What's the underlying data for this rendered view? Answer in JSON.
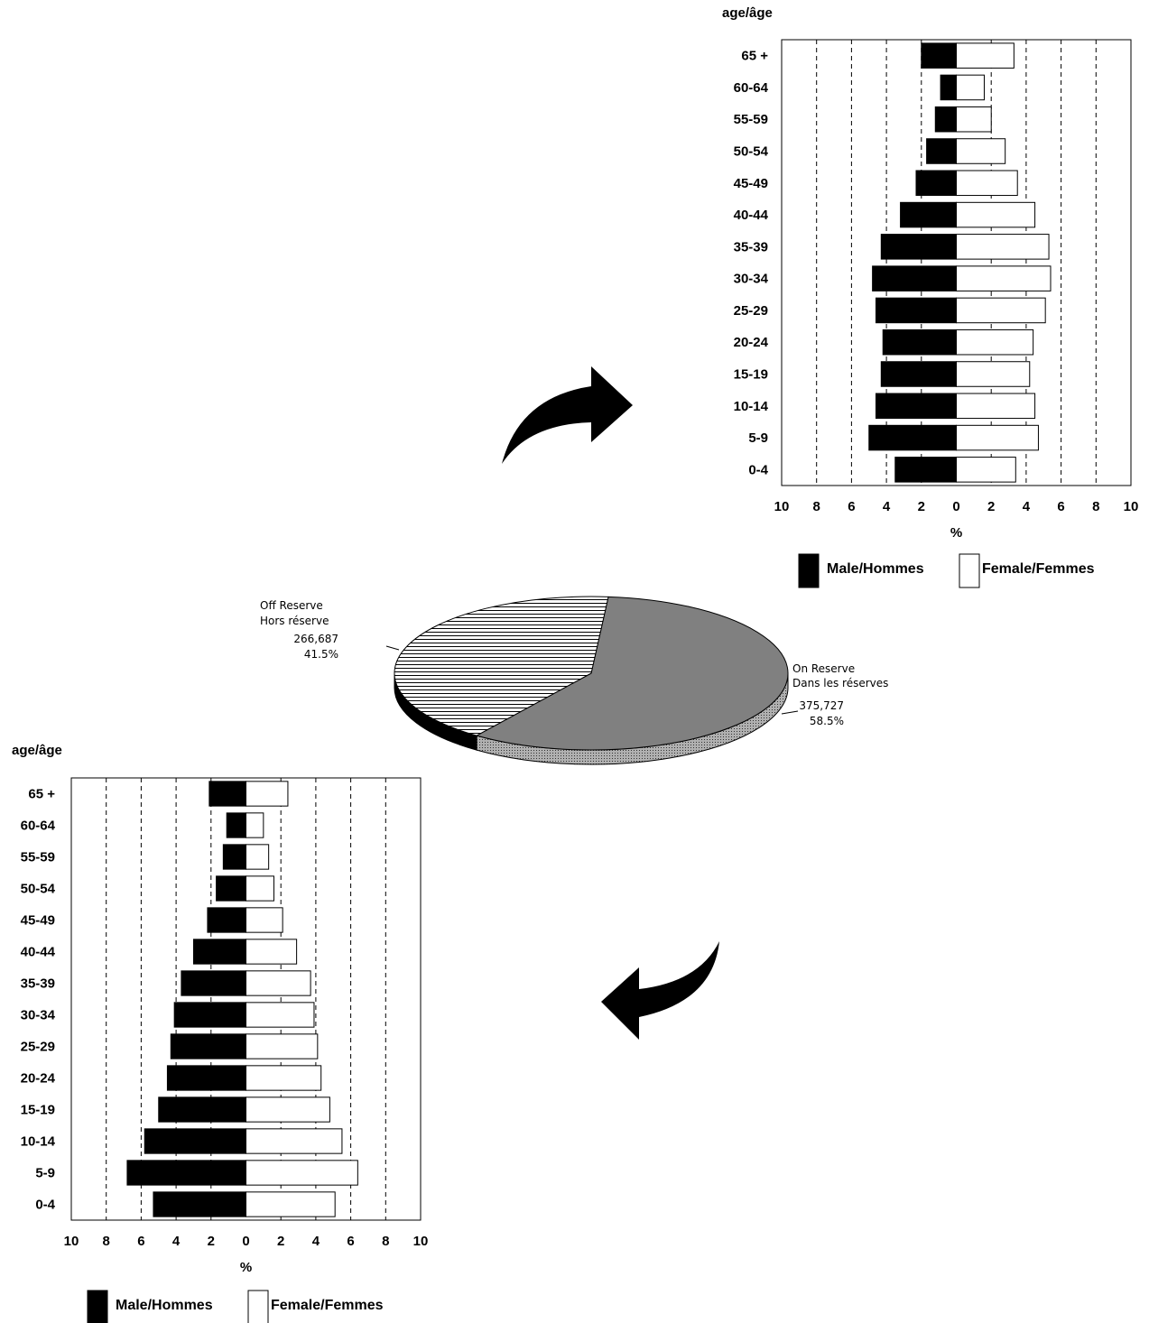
{
  "chart_data": [
    {
      "type": "bar",
      "orientation": "horizontal-pyramid",
      "yaxis_title": "age/âge",
      "xlabel": "%",
      "xlim": [
        -10,
        10
      ],
      "xticks": [
        "10",
        "8",
        "6",
        "4",
        "2",
        "0",
        "2",
        "4",
        "6",
        "8",
        "10"
      ],
      "grid": "dashed vertical",
      "categories": [
        "65 +",
        "60-64",
        "55-59",
        "50-54",
        "45-49",
        "40-44",
        "35-39",
        "30-34",
        "25-29",
        "20-24",
        "15-19",
        "10-14",
        "5-9",
        "0-4"
      ],
      "series": [
        {
          "name": "Male/Hommes",
          "color": "#000000",
          "values": [
            2.0,
            0.9,
            1.2,
            1.7,
            2.3,
            3.2,
            4.3,
            4.8,
            4.6,
            4.2,
            4.3,
            4.6,
            5.0,
            3.5
          ]
        },
        {
          "name": "Female/Femmes",
          "color": "#ffffff",
          "values": [
            3.3,
            1.6,
            2.0,
            2.8,
            3.5,
            4.5,
            5.3,
            5.4,
            5.1,
            4.4,
            4.2,
            4.5,
            4.7,
            3.4
          ]
        }
      ],
      "legend": "bottom"
    },
    {
      "type": "pie",
      "slices": [
        {
          "label": "On Reserve",
          "label2": "Dans les réserves",
          "count": "375,727",
          "percent": "58.5%",
          "value": 58.5,
          "color": "#808080"
        },
        {
          "label": "Off Reserve",
          "label2": "Hors réserve",
          "count": "266,687",
          "percent": "41.5%",
          "value": 41.5,
          "fill": "horizontal hatching"
        }
      ]
    },
    {
      "type": "bar",
      "orientation": "horizontal-pyramid",
      "yaxis_title": "age/âge",
      "xlabel": "%",
      "xlim": [
        -10,
        10
      ],
      "xticks": [
        "10",
        "8",
        "6",
        "4",
        "2",
        "0",
        "2",
        "4",
        "6",
        "8",
        "10"
      ],
      "grid": "dashed vertical",
      "categories": [
        "65 +",
        "60-64",
        "55-59",
        "50-54",
        "45-49",
        "40-44",
        "35-39",
        "30-34",
        "25-29",
        "20-24",
        "15-19",
        "10-14",
        "5-9",
        "0-4"
      ],
      "series": [
        {
          "name": "Male/Hommes",
          "color": "#000000",
          "values": [
            2.1,
            1.1,
            1.3,
            1.7,
            2.2,
            3.0,
            3.7,
            4.1,
            4.3,
            4.5,
            5.0,
            5.8,
            6.8,
            5.3
          ]
        },
        {
          "name": "Female/Femmes",
          "color": "#ffffff",
          "values": [
            2.4,
            1.0,
            1.3,
            1.6,
            2.1,
            2.9,
            3.7,
            3.9,
            4.1,
            4.3,
            4.8,
            5.5,
            6.4,
            5.1
          ]
        }
      ],
      "legend": "bottom"
    }
  ]
}
